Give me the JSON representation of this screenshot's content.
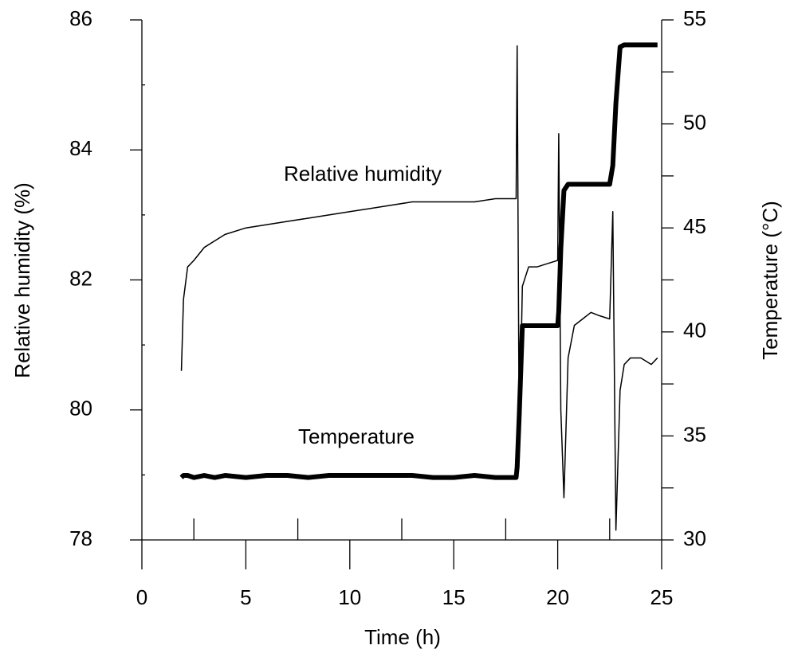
{
  "chart_data": {
    "type": "line",
    "xlabel": "Time (h)",
    "ylabel": "Relative humidity (%)",
    "y2label": "Temperature (°C)",
    "annotations": [
      "Relative humidity",
      "Temperature"
    ],
    "x": [
      1.9,
      2.0,
      2.2,
      2.5,
      3.0,
      3.5,
      4.0,
      5.0,
      6.0,
      7.0,
      8.0,
      9.0,
      10.0,
      11.0,
      12.0,
      13.0,
      14.0,
      15.0,
      16.0,
      17.0,
      18.0,
      18.05,
      18.15,
      18.3,
      18.6,
      19.0,
      19.5,
      20.0,
      20.05,
      20.15,
      20.3,
      20.5,
      20.8,
      21.2,
      21.6,
      22.0,
      22.5,
      22.65,
      22.8,
      23.0,
      23.2,
      23.5,
      24.0,
      24.5,
      24.8
    ],
    "series": [
      {
        "name": "Relative humidity",
        "color": "#000000",
        "width": 1.5,
        "values": [
          80.6,
          81.7,
          82.2,
          82.3,
          82.5,
          82.6,
          82.7,
          82.8,
          82.85,
          82.9,
          82.95,
          83.0,
          83.05,
          83.1,
          83.15,
          83.2,
          83.2,
          83.2,
          83.2,
          83.25,
          83.25,
          85.6,
          79.4,
          81.9,
          82.2,
          82.2,
          82.25,
          82.3,
          84.25,
          80.0,
          78.65,
          80.8,
          81.3,
          81.4,
          81.5,
          81.45,
          81.4,
          83.05,
          78.15,
          80.3,
          80.7,
          80.8,
          80.8,
          80.7,
          80.8
        ]
      },
      {
        "name": "Temperature",
        "color": "#000000",
        "width": 6,
        "axis": "y2",
        "values": [
          33.0,
          33.1,
          33.1,
          33.0,
          33.1,
          33.0,
          33.1,
          33.0,
          33.1,
          33.1,
          33.0,
          33.1,
          33.1,
          33.1,
          33.1,
          33.1,
          33.0,
          33.0,
          33.1,
          33.0,
          33.0,
          33.5,
          36.0,
          40.3,
          40.3,
          40.3,
          40.3,
          40.3,
          41.0,
          44.0,
          46.8,
          47.1,
          47.1,
          47.1,
          47.1,
          47.1,
          47.1,
          48.0,
          51.0,
          53.7,
          53.8,
          53.8,
          53.8,
          53.8,
          53.8
        ]
      }
    ],
    "xlim": [
      0,
      25
    ],
    "xticks": [
      0,
      5,
      10,
      15,
      20,
      25
    ],
    "xminorticks": [
      2.5,
      7.5,
      12.5,
      17.5,
      22.5
    ],
    "ylim": [
      78,
      86
    ],
    "yticks": [
      78,
      80,
      82,
      84,
      86
    ],
    "yminorticks": [
      79,
      81,
      83,
      85
    ],
    "y2lim": [
      30,
      55
    ],
    "y2ticks": [
      30,
      35,
      40,
      45,
      50,
      55
    ],
    "y2minorticks": [
      32.5,
      37.5,
      42.5,
      47.5,
      52.5
    ],
    "grid": false
  }
}
